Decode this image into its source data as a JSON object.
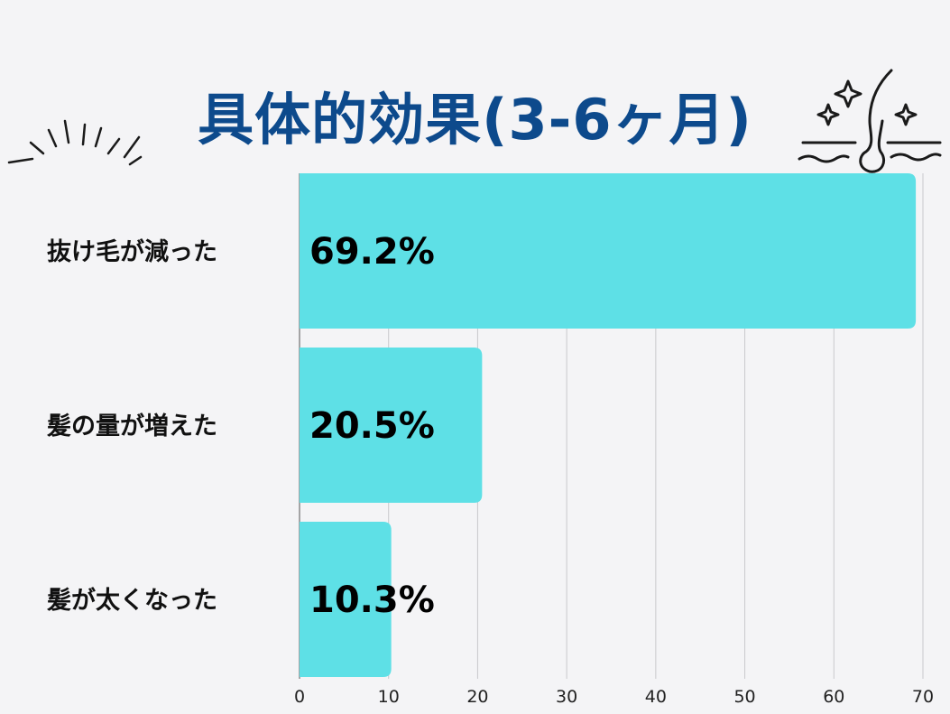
{
  "chart_data": {
    "type": "bar",
    "orientation": "horizontal",
    "title": "具体的効果(3-6ヶ月)",
    "categories": [
      "抜け毛が減った",
      "髪の量が増えた",
      "髪が太くなった"
    ],
    "values": [
      69.2,
      20.5,
      10.3
    ],
    "value_labels": [
      "69.2%",
      "20.5%",
      "10.3%"
    ],
    "xlim": [
      0,
      70
    ],
    "xticks": [
      "0",
      "10",
      "20",
      "30",
      "40",
      "50",
      "60",
      "70"
    ],
    "grid": "vertical",
    "bar_color": "#5ee0e6",
    "title_color": "#0d4a8c"
  },
  "decorations": {
    "left": "burst-lines-icon",
    "right": "hair-follicle-sparkle-icon"
  }
}
